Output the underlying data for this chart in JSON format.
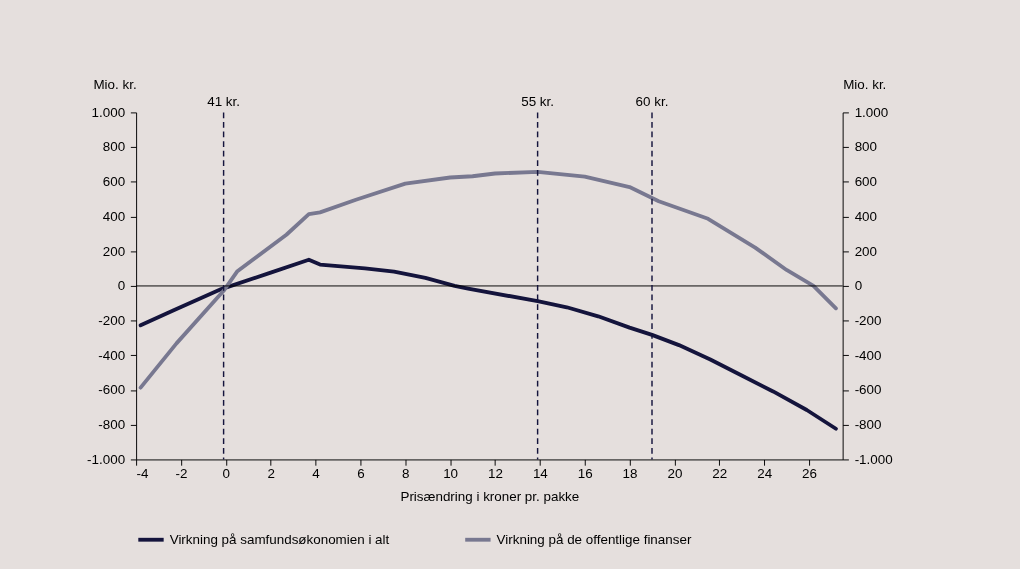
{
  "chart_data": {
    "type": "line",
    "xlabel": "Prisændring i kroner pr. pakke",
    "ylabel": "Mio. kr.",
    "y2label": "Mio. kr.",
    "xlim": [
      -4,
      27.5
    ],
    "xticks": [
      -4,
      -2,
      0,
      2,
      4,
      6,
      8,
      10,
      12,
      14,
      16,
      18,
      20,
      22,
      24,
      26
    ],
    "ylim": [
      -1000,
      1000
    ],
    "yticks": [
      {
        "value": -1000,
        "label": "-1.000"
      },
      -800,
      -600,
      -400,
      -200,
      0,
      200,
      400,
      600,
      800,
      {
        "value": 1000,
        "label": "1.000"
      }
    ],
    "y2lim": [
      -1000,
      1000
    ],
    "y2ticks": [
      {
        "value": -1000,
        "label": "-1.000"
      },
      -800,
      -600,
      -400,
      -200,
      0,
      200,
      400,
      600,
      800,
      {
        "value": 1000,
        "label": "1.000"
      }
    ],
    "grid": false,
    "legend": "bottom",
    "marker": "none",
    "line_style": "solid",
    "series": [
      {
        "name": "Virkning på samfundsøkonomien i alt",
        "color": "#14143c",
        "x": [
          -3.8,
          -2.3,
          -0.2,
          2,
          3.7,
          4.2,
          6.2,
          7.5,
          8.9,
          10.2,
          10.8,
          13.9,
          15.2,
          16.6,
          18,
          19,
          20.2,
          21.6,
          23,
          24.4,
          25.9,
          27.2
        ],
        "values": [
          -227,
          -138,
          -18,
          77,
          151,
          123,
          101,
          83,
          46,
          0,
          -15,
          -88,
          -123,
          -175,
          -240,
          -282,
          -341,
          -424,
          -516,
          -608,
          -715,
          -823
        ]
      },
      {
        "name": "Virkning på de offentlige finanser",
        "color": "#787890",
        "x": [
          -3.8,
          -2.2,
          -0.1,
          0.5,
          2.7,
          3.7,
          4.2,
          5.8,
          8,
          10,
          11,
          12,
          13.9,
          16,
          18,
          19.3,
          21.5,
          23.6,
          25,
          26.2,
          27.2
        ],
        "values": [
          -586,
          -331,
          -28,
          83,
          295,
          414,
          424,
          497,
          590,
          625,
          632,
          648,
          657,
          630,
          570,
          488,
          387,
          221,
          92,
          0,
          -129
        ]
      }
    ],
    "ref_lines": [
      {
        "axis": "y",
        "value": 0,
        "color": "#000000"
      },
      {
        "axis": "x",
        "value": -0.1,
        "label": "41 kr.",
        "color": "#14143c",
        "line_style": "dashed"
      },
      {
        "axis": "x",
        "value": 13.9,
        "label": "55 kr.",
        "color": "#14143c",
        "line_style": "dashed"
      },
      {
        "axis": "x",
        "value": 19,
        "label": "60 kr.",
        "color": "#14143c",
        "line_style": "dashed"
      }
    ]
  }
}
